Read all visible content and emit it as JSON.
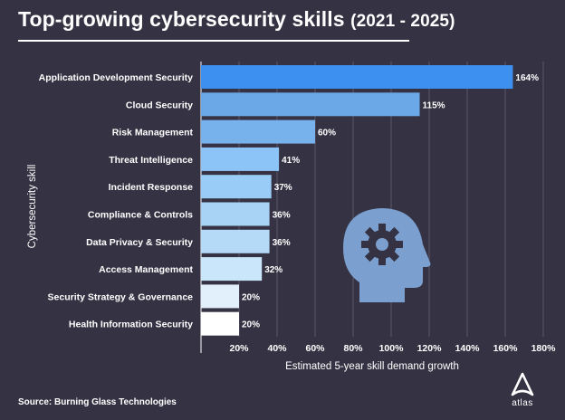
{
  "header": {
    "title_main": "Top-growing cybersecurity skills",
    "title_years": "(2021 - 2025)"
  },
  "footer": {
    "source_label": "Source:",
    "source_text": "Burning Glass Technologies",
    "logo_text": "atlas"
  },
  "chart_data": {
    "type": "bar",
    "orientation": "horizontal",
    "categories": [
      "Application Development Security",
      "Cloud Security",
      "Risk Management",
      "Threat Intelligence",
      "Incident Response",
      "Compliance & Controls",
      "Data Privacy & Security",
      "Access Management",
      "Security Strategy & Governance",
      "Health Information Security"
    ],
    "values": [
      164,
      115,
      60,
      41,
      37,
      36,
      36,
      32,
      20,
      20
    ],
    "value_labels": [
      "164%",
      "115%",
      "60%",
      "41%",
      "37%",
      "36%",
      "36%",
      "32%",
      "20%",
      "20%"
    ],
    "bar_colors": [
      "#3d8ff0",
      "#6aa8e8",
      "#78b2ec",
      "#8cc4f8",
      "#99ccf7",
      "#a9d3f5",
      "#b4daf8",
      "#c9e6fb",
      "#e2f0fc",
      "#ffffff"
    ],
    "xlabel": "Estimated 5-year skill demand growth",
    "ylabel": "Cybersecurity skill",
    "x_ticks": [
      "20%",
      "40%",
      "60%",
      "80%",
      "100%",
      "120%",
      "140%",
      "160%",
      "180%"
    ],
    "xlim": [
      0,
      190
    ],
    "grid": true,
    "annotation_icon": "head-gear-icon"
  }
}
